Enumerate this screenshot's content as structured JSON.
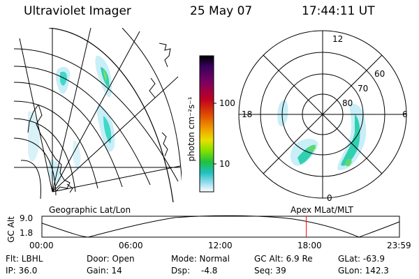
{
  "header": {
    "instrument": "Ultraviolet Imager",
    "date": "25 May 07",
    "time": "17:44:11 UT"
  },
  "colorbar": {
    "label": "photon cm⁻²s⁻¹",
    "ticks": [
      "100",
      "10"
    ],
    "colors": [
      "#000000",
      "#3a0060",
      "#800060",
      "#c00020",
      "#e05000",
      "#f0a000",
      "#e8e000",
      "#80e000",
      "#20c040",
      "#20c0c0",
      "#a0e0f0",
      "#ffffff"
    ]
  },
  "polar_plot": {
    "mlt_labels": [
      "12",
      "18",
      "6",
      "0"
    ],
    "lat_labels": [
      "60",
      "70",
      "80"
    ]
  },
  "timeline": {
    "left_label": "Geographic Lat/Lon",
    "right_label": "Apex MLat/MLT",
    "yaxis_title": "GC Alt",
    "y_ticks": [
      "9.0",
      "1.8"
    ],
    "x_ticks": [
      "00:00",
      "06:00",
      "12:00",
      "18:00",
      "23:59"
    ],
    "marker_time": "17:44",
    "marker_color": "#ff0000"
  },
  "info": {
    "row1": [
      "Flt: LBHL",
      "Door: Open",
      "Mode: Normal",
      "GC Alt: 6.9 Re",
      "GLat: -63.9"
    ],
    "row2": [
      "IP: 36.0",
      "Gain: 14",
      "Dsp:",
      "-4.8",
      "Seq: 39",
      "GLon: 142.3"
    ]
  }
}
